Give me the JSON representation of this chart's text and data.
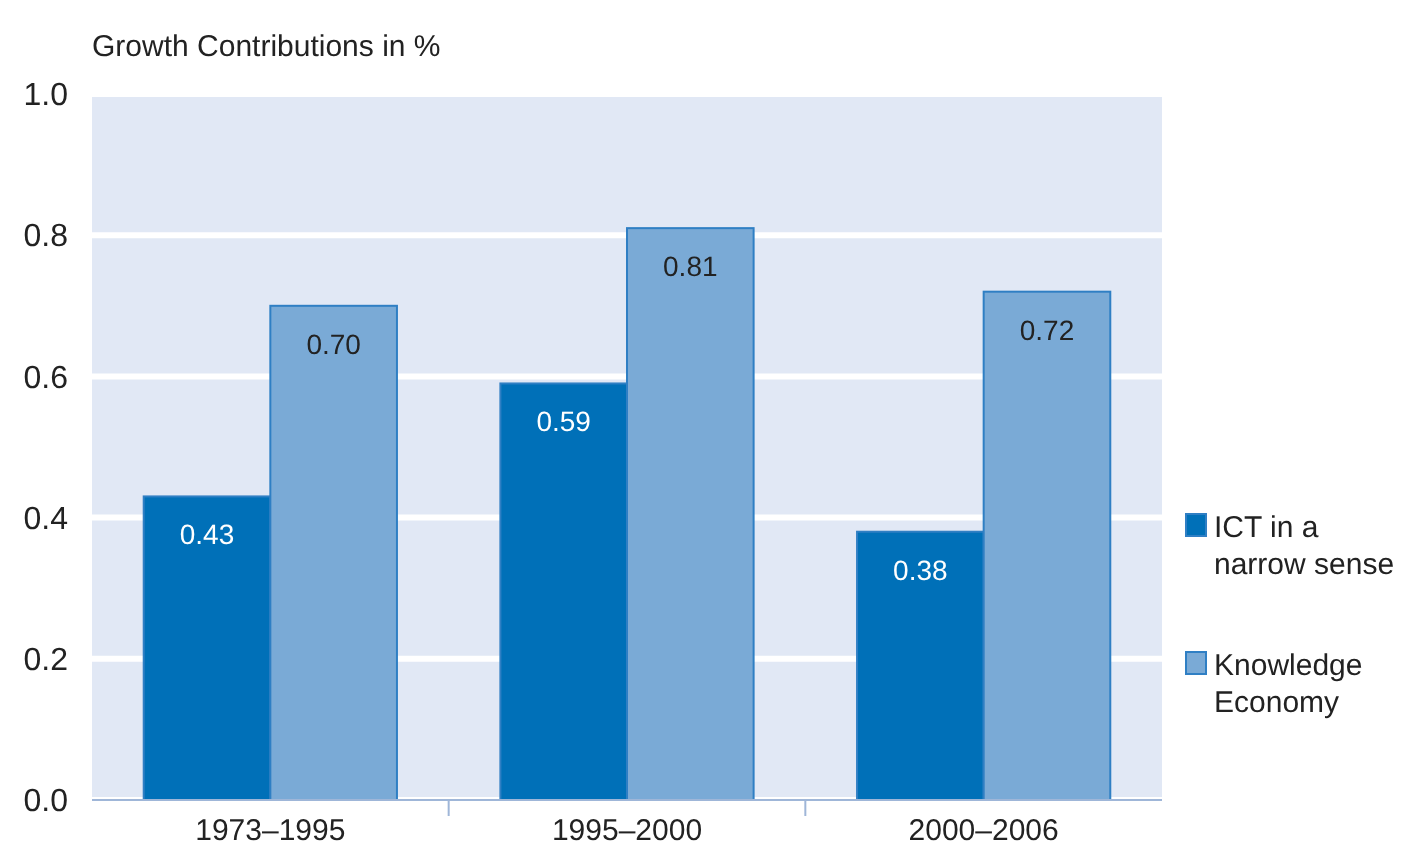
{
  "chart_data": {
    "type": "bar",
    "title": "Growth Contributions in %",
    "categories": [
      "1973–1995",
      "1995–2000",
      "2000–2006"
    ],
    "series": [
      {
        "name": "ICT in a narrow sense",
        "color": "#0070b8",
        "values": [
          0.43,
          0.59,
          0.38
        ],
        "value_labels": [
          "0.43",
          "0.59",
          "0.38"
        ]
      },
      {
        "name": "Knowledge Economy",
        "color": "#7aaad6",
        "values": [
          0.7,
          0.81,
          0.72
        ],
        "value_labels": [
          "0.70",
          "0.81",
          "0.72"
        ]
      }
    ],
    "ylim": [
      0,
      1
    ],
    "yticks": [
      {
        "value": 0,
        "label": "0.0"
      },
      {
        "value": 0.2,
        "label": "0.2"
      },
      {
        "value": 0.4,
        "label": "0.4"
      },
      {
        "value": 0.6,
        "label": "0.6"
      },
      {
        "value": 0.8,
        "label": "0.8"
      },
      {
        "value": 1,
        "label": "1.0"
      }
    ],
    "grid": "y",
    "legend": "right"
  }
}
